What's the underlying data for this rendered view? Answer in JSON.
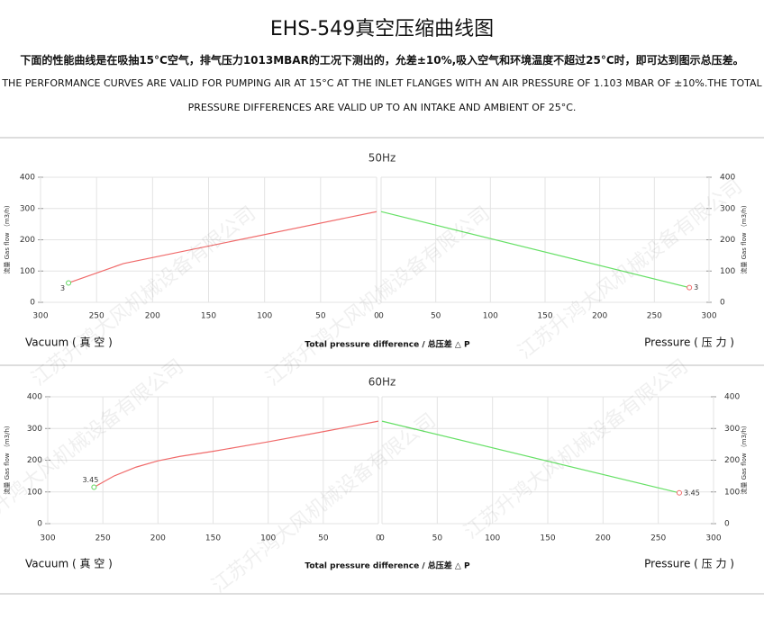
{
  "header": {
    "title": "EHS-549真空压缩曲线图",
    "note_cn": "下面的性能曲线是在吸抽15°C空气，排气压力1013MBAR的工况下测出的，允差±10%,吸入空气和环境温度不超过25°C时，即可达到图示总压差。",
    "note_en": [
      "THE PERFORMANCE CURVES ARE VALID FOR PUMPING AIR AT 15°C AT THE INLET FLANGES WITH AN AIR PRESSURE OF 1.103 MBAR OF ±10%.THE TOTAL",
      "PRESSURE DIFFERENCES ARE VALID UP TO AN INTAKE AND AMBIENT OF 25°C."
    ],
    "watermark": "江苏升鸿大风机械设备有限公司"
  },
  "chart_data": [
    {
      "type": "line",
      "title": "50Hz",
      "xlabel": "Total pressure difference / 总压差 △ P",
      "ylabel": "流量 Gas flow （m3/h)",
      "ylim": [
        0,
        400
      ],
      "yticks": [
        0,
        100,
        200,
        300,
        400
      ],
      "grid": true,
      "vacuum": {
        "label": "Vacuum ( 真 空 )",
        "xlim": [
          300,
          0
        ],
        "xticks": [
          300,
          250,
          200,
          150,
          100,
          50,
          0
        ],
        "color": "#f06a6a",
        "marker_color": "#5cd65c",
        "x": [
          275,
          226,
          0
        ],
        "values": [
          62,
          124,
          290
        ],
        "point_label": 3
      },
      "pressure": {
        "label": "Pressure ( 压 力 )",
        "xlim": [
          0,
          300
        ],
        "xticks": [
          0,
          50,
          100,
          150,
          200,
          250,
          300
        ],
        "color": "#66e066",
        "marker_color": "#f06a6a",
        "x": [
          0,
          282
        ],
        "values": [
          290,
          47
        ],
        "point_label": 3
      }
    },
    {
      "type": "line",
      "title": "60Hz",
      "xlabel": "Total pressure difference / 总压差 △ P",
      "ylabel": "流量 Gas flow （m3/h)",
      "ylim": [
        0,
        400
      ],
      "yticks": [
        0,
        100,
        200,
        300,
        400
      ],
      "grid": true,
      "vacuum": {
        "label": "Vacuum ( 真 空 )",
        "xlim": [
          300,
          0
        ],
        "xticks": [
          300,
          250,
          200,
          150,
          100,
          50,
          0
        ],
        "color": "#f06a6a",
        "marker_color": "#5cd65c",
        "x": [
          258,
          240,
          220,
          200,
          180,
          150,
          100,
          50,
          0
        ],
        "values": [
          115,
          150,
          178,
          198,
          212,
          228,
          258,
          290,
          323
        ],
        "point_label": 3.45
      },
      "pressure": {
        "label": "Pressure ( 压 力 )",
        "xlim": [
          0,
          300
        ],
        "xticks": [
          0,
          50,
          100,
          150,
          200,
          250,
          300
        ],
        "color": "#66e066",
        "marker_color": "#f06a6a",
        "x": [
          0,
          269
        ],
        "values": [
          323,
          97
        ],
        "point_label": 3.45
      }
    }
  ]
}
